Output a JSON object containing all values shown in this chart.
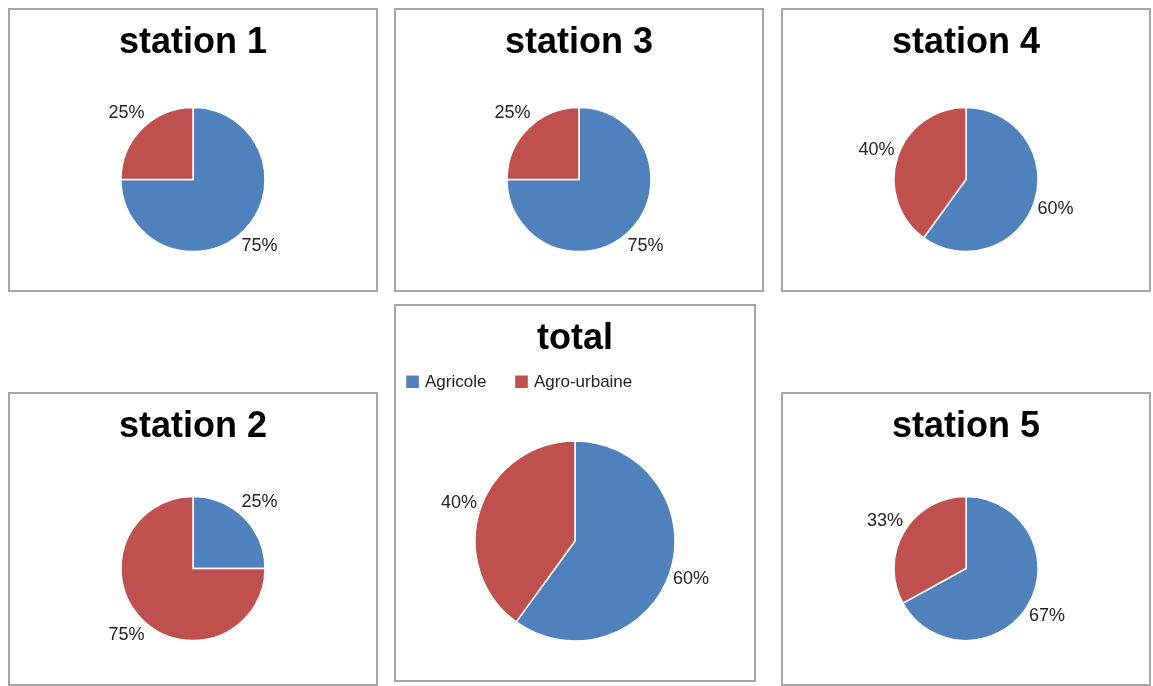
{
  "chart_data": [
    {
      "type": "pie",
      "title": "station 1",
      "categories": [
        null,
        null
      ],
      "values": [
        75,
        25
      ],
      "colors": [
        "#4f81bd",
        "#c0504d"
      ],
      "value_labels": [
        "75%",
        "25%"
      ]
    },
    {
      "type": "pie",
      "title": "station 3",
      "categories": [
        null,
        null
      ],
      "values": [
        75,
        25
      ],
      "colors": [
        "#4f81bd",
        "#c0504d"
      ],
      "value_labels": [
        "75%",
        "25%"
      ]
    },
    {
      "type": "pie",
      "title": "station 4",
      "categories": [
        null,
        null
      ],
      "values": [
        60,
        40
      ],
      "colors": [
        "#4f81bd",
        "#c0504d"
      ],
      "value_labels": [
        "60%",
        "40%"
      ]
    },
    {
      "type": "pie",
      "title": "station 2",
      "categories": [
        null,
        null
      ],
      "values": [
        25,
        75
      ],
      "colors": [
        "#4f81bd",
        "#c0504d"
      ],
      "value_labels": [
        "25%",
        "75%"
      ]
    },
    {
      "type": "pie",
      "title": "total",
      "categories": [
        "Agricole",
        "Agro-urbaine"
      ],
      "values": [
        60,
        40
      ],
      "colors": [
        "#4f81bd",
        "#c0504d"
      ],
      "value_labels": [
        "60%",
        "40%"
      ],
      "legend": "top"
    },
    {
      "type": "pie",
      "title": "station 5",
      "categories": [
        null,
        null
      ],
      "values": [
        67,
        33
      ],
      "colors": [
        "#4f81bd",
        "#c0504d"
      ],
      "value_labels": [
        "67%",
        "33%"
      ]
    }
  ]
}
